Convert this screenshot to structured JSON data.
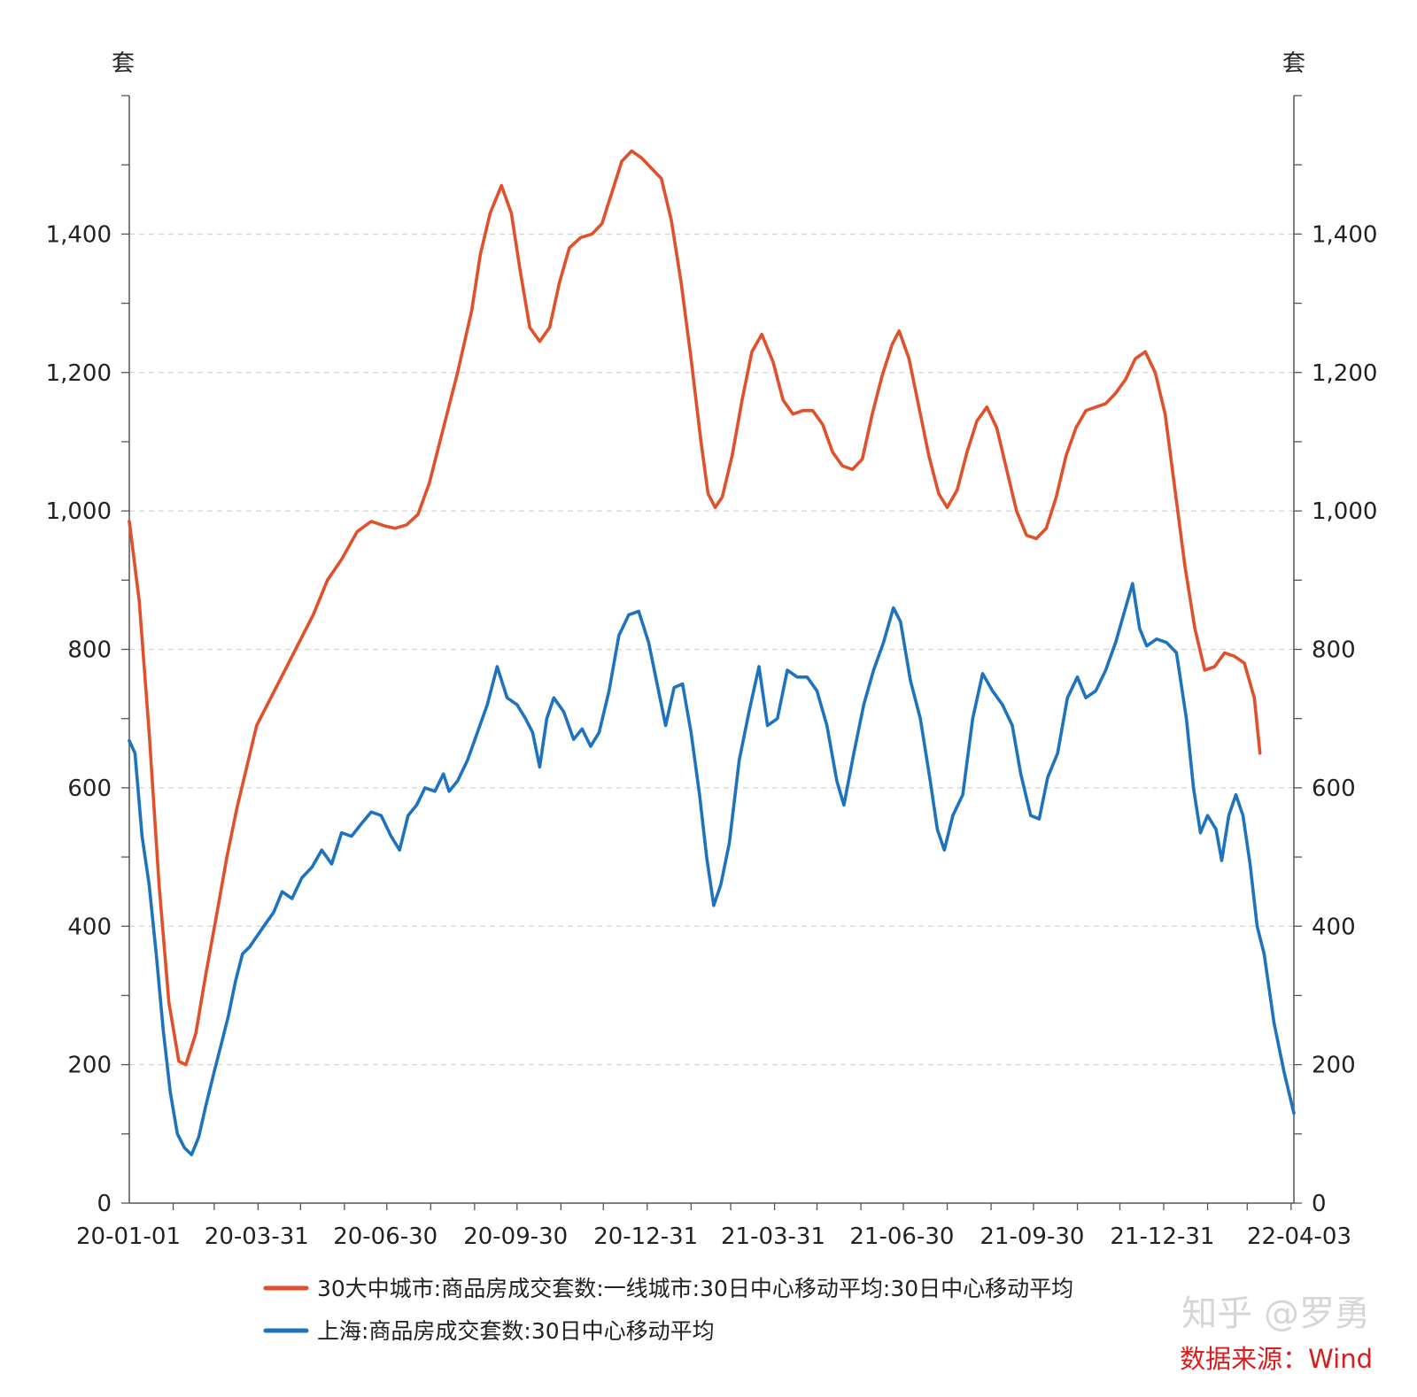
{
  "chart_data": {
    "type": "line",
    "left_axis": {
      "unit": "套",
      "ylim": [
        0,
        1600
      ],
      "ticks": [
        0,
        200,
        400,
        600,
        800,
        1000,
        1200,
        1400
      ],
      "tick_labels": [
        "0",
        "200",
        "400",
        "600",
        "800",
        "1,000",
        "1,200",
        "1,400"
      ]
    },
    "right_axis": {
      "unit": "套",
      "ylim": [
        0,
        1600
      ],
      "ticks": [
        0,
        200,
        400,
        600,
        800,
        1000,
        1200,
        1400
      ],
      "tick_labels": [
        "0",
        "200",
        "400",
        "600",
        "800",
        "1,000",
        "1,200",
        "1,400"
      ]
    },
    "x_range": [
      "2020-01-01",
      "2022-04-03"
    ],
    "x_tick_labels": [
      "20-01-01",
      "20-03-31",
      "20-06-30",
      "20-09-30",
      "20-12-31",
      "21-03-31",
      "21-06-30",
      "21-09-30",
      "21-12-31",
      "22-04-03"
    ],
    "grid": true,
    "legend_position": "bottom",
    "series": [
      {
        "name": "30大中城市:商品房成交套数:一线城市:30日中心移动平均:30日中心移动平均",
        "color": "#e0502b",
        "points": [
          [
            "2020-01-01",
            985
          ],
          [
            "2020-01-08",
            870
          ],
          [
            "2020-01-15",
            680
          ],
          [
            "2020-01-22",
            460
          ],
          [
            "2020-01-29",
            290
          ],
          [
            "2020-02-05",
            205
          ],
          [
            "2020-02-10",
            200
          ],
          [
            "2020-02-17",
            245
          ],
          [
            "2020-02-24",
            330
          ],
          [
            "2020-03-03",
            420
          ],
          [
            "2020-03-10",
            500
          ],
          [
            "2020-03-17",
            570
          ],
          [
            "2020-03-24",
            630
          ],
          [
            "2020-03-31",
            690
          ],
          [
            "2020-04-10",
            730
          ],
          [
            "2020-04-20",
            770
          ],
          [
            "2020-04-30",
            810
          ],
          [
            "2020-05-10",
            850
          ],
          [
            "2020-05-20",
            900
          ],
          [
            "2020-05-30",
            930
          ],
          [
            "2020-06-10",
            970
          ],
          [
            "2020-06-20",
            985
          ],
          [
            "2020-06-30",
            978
          ],
          [
            "2020-07-07",
            975
          ],
          [
            "2020-07-15",
            980
          ],
          [
            "2020-07-23",
            995
          ],
          [
            "2020-07-31",
            1040
          ],
          [
            "2020-08-10",
            1120
          ],
          [
            "2020-08-20",
            1200
          ],
          [
            "2020-08-30",
            1290
          ],
          [
            "2020-09-05",
            1370
          ],
          [
            "2020-09-12",
            1430
          ],
          [
            "2020-09-20",
            1470
          ],
          [
            "2020-09-27",
            1430
          ],
          [
            "2020-10-03",
            1350
          ],
          [
            "2020-10-10",
            1265
          ],
          [
            "2020-10-17",
            1245
          ],
          [
            "2020-10-24",
            1265
          ],
          [
            "2020-10-31",
            1330
          ],
          [
            "2020-11-07",
            1380
          ],
          [
            "2020-11-15",
            1395
          ],
          [
            "2020-11-23",
            1400
          ],
          [
            "2020-11-30",
            1415
          ],
          [
            "2020-12-07",
            1460
          ],
          [
            "2020-12-14",
            1505
          ],
          [
            "2020-12-21",
            1520
          ],
          [
            "2020-12-28",
            1510
          ],
          [
            "2021-01-04",
            1495
          ],
          [
            "2021-01-11",
            1480
          ],
          [
            "2021-01-18",
            1420
          ],
          [
            "2021-01-25",
            1330
          ],
          [
            "2021-02-01",
            1220
          ],
          [
            "2021-02-08",
            1100
          ],
          [
            "2021-02-13",
            1025
          ],
          [
            "2021-02-18",
            1005
          ],
          [
            "2021-02-23",
            1020
          ],
          [
            "2021-03-02",
            1080
          ],
          [
            "2021-03-09",
            1160
          ],
          [
            "2021-03-16",
            1230
          ],
          [
            "2021-03-23",
            1255
          ],
          [
            "2021-03-31",
            1215
          ],
          [
            "2021-04-07",
            1160
          ],
          [
            "2021-04-14",
            1140
          ],
          [
            "2021-04-21",
            1145
          ],
          [
            "2021-04-28",
            1145
          ],
          [
            "2021-05-05",
            1125
          ],
          [
            "2021-05-12",
            1085
          ],
          [
            "2021-05-19",
            1065
          ],
          [
            "2021-05-26",
            1060
          ],
          [
            "2021-06-02",
            1075
          ],
          [
            "2021-06-09",
            1140
          ],
          [
            "2021-06-16",
            1195
          ],
          [
            "2021-06-23",
            1240
          ],
          [
            "2021-06-28",
            1260
          ],
          [
            "2021-07-05",
            1220
          ],
          [
            "2021-07-12",
            1150
          ],
          [
            "2021-07-19",
            1080
          ],
          [
            "2021-07-26",
            1025
          ],
          [
            "2021-08-01",
            1005
          ],
          [
            "2021-08-08",
            1030
          ],
          [
            "2021-08-15",
            1085
          ],
          [
            "2021-08-22",
            1130
          ],
          [
            "2021-08-29",
            1150
          ],
          [
            "2021-09-05",
            1120
          ],
          [
            "2021-09-12",
            1060
          ],
          [
            "2021-09-19",
            1000
          ],
          [
            "2021-09-26",
            965
          ],
          [
            "2021-10-03",
            960
          ],
          [
            "2021-10-10",
            975
          ],
          [
            "2021-10-17",
            1020
          ],
          [
            "2021-10-24",
            1080
          ],
          [
            "2021-10-31",
            1120
          ],
          [
            "2021-11-07",
            1145
          ],
          [
            "2021-11-14",
            1150
          ],
          [
            "2021-11-21",
            1155
          ],
          [
            "2021-11-28",
            1170
          ],
          [
            "2021-12-05",
            1190
          ],
          [
            "2021-12-12",
            1220
          ],
          [
            "2021-12-19",
            1230
          ],
          [
            "2021-12-26",
            1200
          ],
          [
            "2022-01-02",
            1140
          ],
          [
            "2022-01-09",
            1030
          ],
          [
            "2022-01-16",
            920
          ],
          [
            "2022-01-23",
            830
          ],
          [
            "2022-01-30",
            770
          ],
          [
            "2022-02-06",
            775
          ],
          [
            "2022-02-13",
            795
          ],
          [
            "2022-02-20",
            790
          ],
          [
            "2022-02-27",
            780
          ],
          [
            "2022-03-06",
            730
          ],
          [
            "2022-03-10",
            650
          ]
        ]
      },
      {
        "name": "上海:商品房成交套数:30日中心移动平均",
        "color": "#1e73be",
        "points": [
          [
            "2020-01-01",
            668
          ],
          [
            "2020-01-05",
            650
          ],
          [
            "2020-01-10",
            530
          ],
          [
            "2020-01-15",
            460
          ],
          [
            "2020-01-20",
            360
          ],
          [
            "2020-01-25",
            250
          ],
          [
            "2020-01-30",
            160
          ],
          [
            "2020-02-04",
            100
          ],
          [
            "2020-02-09",
            80
          ],
          [
            "2020-02-14",
            70
          ],
          [
            "2020-02-19",
            95
          ],
          [
            "2020-02-24",
            140
          ],
          [
            "2020-03-01",
            190
          ],
          [
            "2020-03-06",
            230
          ],
          [
            "2020-03-11",
            270
          ],
          [
            "2020-03-16",
            320
          ],
          [
            "2020-03-21",
            360
          ],
          [
            "2020-03-26",
            370
          ],
          [
            "2020-03-31",
            385
          ],
          [
            "2020-04-05",
            400
          ],
          [
            "2020-04-12",
            420
          ],
          [
            "2020-04-18",
            450
          ],
          [
            "2020-04-25",
            440
          ],
          [
            "2020-05-02",
            470
          ],
          [
            "2020-05-09",
            485
          ],
          [
            "2020-05-16",
            510
          ],
          [
            "2020-05-23",
            490
          ],
          [
            "2020-05-30",
            535
          ],
          [
            "2020-06-06",
            530
          ],
          [
            "2020-06-13",
            548
          ],
          [
            "2020-06-20",
            565
          ],
          [
            "2020-06-27",
            560
          ],
          [
            "2020-07-04",
            530
          ],
          [
            "2020-07-10",
            510
          ],
          [
            "2020-07-16",
            560
          ],
          [
            "2020-07-22",
            575
          ],
          [
            "2020-07-28",
            600
          ],
          [
            "2020-08-04",
            595
          ],
          [
            "2020-08-10",
            620
          ],
          [
            "2020-08-14",
            595
          ],
          [
            "2020-08-20",
            610
          ],
          [
            "2020-08-27",
            640
          ],
          [
            "2020-09-03",
            680
          ],
          [
            "2020-09-10",
            720
          ],
          [
            "2020-09-17",
            775
          ],
          [
            "2020-09-24",
            730
          ],
          [
            "2020-10-01",
            720
          ],
          [
            "2020-10-07",
            700
          ],
          [
            "2020-10-12",
            680
          ],
          [
            "2020-10-17",
            630
          ],
          [
            "2020-10-22",
            700
          ],
          [
            "2020-10-27",
            730
          ],
          [
            "2020-11-03",
            710
          ],
          [
            "2020-11-10",
            670
          ],
          [
            "2020-11-16",
            685
          ],
          [
            "2020-11-22",
            660
          ],
          [
            "2020-11-28",
            680
          ],
          [
            "2020-12-05",
            740
          ],
          [
            "2020-12-12",
            820
          ],
          [
            "2020-12-19",
            850
          ],
          [
            "2020-12-26",
            855
          ],
          [
            "2021-01-02",
            810
          ],
          [
            "2021-01-09",
            740
          ],
          [
            "2021-01-14",
            690
          ],
          [
            "2021-01-20",
            745
          ],
          [
            "2021-01-26",
            750
          ],
          [
            "2021-02-01",
            680
          ],
          [
            "2021-02-07",
            590
          ],
          [
            "2021-02-12",
            500
          ],
          [
            "2021-02-17",
            430
          ],
          [
            "2021-02-22",
            460
          ],
          [
            "2021-02-28",
            520
          ],
          [
            "2021-03-07",
            640
          ],
          [
            "2021-03-14",
            710
          ],
          [
            "2021-03-21",
            775
          ],
          [
            "2021-03-27",
            690
          ],
          [
            "2021-04-03",
            700
          ],
          [
            "2021-04-10",
            770
          ],
          [
            "2021-04-17",
            760
          ],
          [
            "2021-04-24",
            760
          ],
          [
            "2021-05-01",
            740
          ],
          [
            "2021-05-08",
            690
          ],
          [
            "2021-05-15",
            610
          ],
          [
            "2021-05-20",
            575
          ],
          [
            "2021-05-27",
            650
          ],
          [
            "2021-06-03",
            720
          ],
          [
            "2021-06-10",
            770
          ],
          [
            "2021-06-17",
            810
          ],
          [
            "2021-06-24",
            860
          ],
          [
            "2021-06-29",
            840
          ],
          [
            "2021-07-06",
            755
          ],
          [
            "2021-07-13",
            700
          ],
          [
            "2021-07-20",
            610
          ],
          [
            "2021-07-25",
            540
          ],
          [
            "2021-07-30",
            510
          ],
          [
            "2021-08-05",
            560
          ],
          [
            "2021-08-12",
            590
          ],
          [
            "2021-08-19",
            700
          ],
          [
            "2021-08-26",
            765
          ],
          [
            "2021-09-02",
            740
          ],
          [
            "2021-09-09",
            720
          ],
          [
            "2021-09-16",
            690
          ],
          [
            "2021-09-22",
            620
          ],
          [
            "2021-09-29",
            560
          ],
          [
            "2021-10-05",
            555
          ],
          [
            "2021-10-11",
            615
          ],
          [
            "2021-10-18",
            650
          ],
          [
            "2021-10-25",
            730
          ],
          [
            "2021-11-01",
            760
          ],
          [
            "2021-11-07",
            730
          ],
          [
            "2021-11-14",
            740
          ],
          [
            "2021-11-21",
            770
          ],
          [
            "2021-11-28",
            810
          ],
          [
            "2021-12-05",
            860
          ],
          [
            "2021-12-10",
            895
          ],
          [
            "2021-12-15",
            830
          ],
          [
            "2021-12-20",
            805
          ],
          [
            "2021-12-27",
            815
          ],
          [
            "2022-01-03",
            810
          ],
          [
            "2022-01-10",
            795
          ],
          [
            "2022-01-17",
            700
          ],
          [
            "2022-01-22",
            600
          ],
          [
            "2022-01-27",
            535
          ],
          [
            "2022-02-01",
            560
          ],
          [
            "2022-02-07",
            540
          ],
          [
            "2022-02-11",
            495
          ],
          [
            "2022-02-16",
            560
          ],
          [
            "2022-02-21",
            590
          ],
          [
            "2022-02-26",
            560
          ],
          [
            "2022-03-03",
            490
          ],
          [
            "2022-03-08",
            400
          ],
          [
            "2022-03-13",
            360
          ],
          [
            "2022-03-20",
            260
          ],
          [
            "2022-03-27",
            190
          ],
          [
            "2022-04-03",
            130
          ]
        ]
      }
    ]
  },
  "source_note": "数据来源：Wind",
  "watermark": "知乎 @罗勇"
}
